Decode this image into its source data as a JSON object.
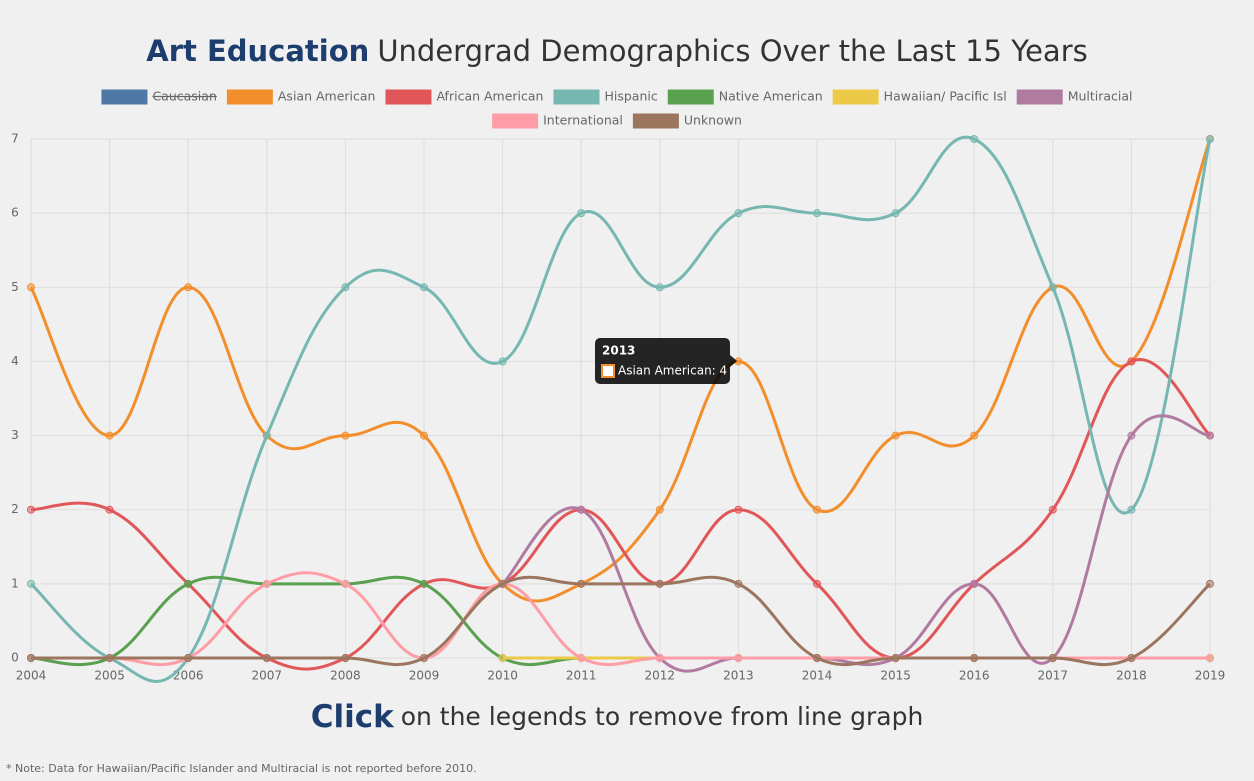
{
  "chart_data": {
    "type": "line",
    "title_emphasis": "Art Education",
    "title": "Undergrad Demographics Over the Last 15 Years",
    "categories": [
      "2004",
      "2005",
      "2006",
      "2007",
      "2008",
      "2009",
      "2010",
      "2011",
      "2012",
      "2013",
      "2014",
      "2015",
      "2016",
      "2017",
      "2018",
      "2019"
    ],
    "ylim": [
      0,
      7
    ],
    "yticks": [
      0,
      1,
      2,
      3,
      4,
      5,
      6,
      7
    ],
    "grid": true,
    "legend": "top",
    "series": [
      {
        "name": "Caucasian",
        "color": "#4e79a7",
        "hidden": true,
        "values": [
          null,
          null,
          null,
          null,
          null,
          null,
          null,
          null,
          null,
          null,
          null,
          null,
          null,
          null,
          null,
          null
        ]
      },
      {
        "name": "Asian American",
        "color": "#f28e2b",
        "values": [
          5,
          3,
          5,
          3,
          3,
          3,
          1,
          1,
          2,
          4,
          2,
          3,
          3,
          5,
          4,
          7
        ]
      },
      {
        "name": "African American",
        "color": "#e15759",
        "values": [
          2,
          2,
          1,
          0,
          0,
          1,
          1,
          2,
          1,
          2,
          1,
          0,
          1,
          2,
          4,
          3
        ]
      },
      {
        "name": "Hispanic",
        "color": "#76b7b2",
        "values": [
          1,
          0,
          0,
          3,
          5,
          5,
          4,
          6,
          5,
          6,
          6,
          6,
          7,
          5,
          2,
          7
        ]
      },
      {
        "name": "Native American",
        "color": "#59a14f",
        "values": [
          0,
          0,
          1,
          1,
          1,
          1,
          0,
          0,
          0,
          0,
          0,
          0,
          0,
          0,
          0,
          0
        ]
      },
      {
        "name": "Hawaiian/ Pacific Isl",
        "color": "#edc948",
        "values": [
          null,
          null,
          null,
          null,
          null,
          null,
          0,
          0,
          0,
          0,
          0,
          0,
          0,
          0,
          0,
          0
        ]
      },
      {
        "name": "Multiracial",
        "color": "#b07aa1",
        "values": [
          null,
          null,
          null,
          null,
          null,
          null,
          1,
          2,
          0,
          0,
          0,
          0,
          1,
          0,
          3,
          3
        ]
      },
      {
        "name": "International",
        "color": "#ff9da7",
        "values": [
          0,
          0,
          0,
          1,
          1,
          0,
          1,
          0,
          0,
          0,
          0,
          0,
          0,
          0,
          0,
          0
        ]
      },
      {
        "name": "Unknown",
        "color": "#9c755f",
        "values": [
          0,
          0,
          0,
          0,
          0,
          0,
          1,
          1,
          1,
          1,
          0,
          0,
          0,
          0,
          0,
          1
        ]
      }
    ],
    "tooltip": {
      "title": "2013",
      "label": "Asian American: 4"
    },
    "footer_emphasis": "Click",
    "footer": "on the legends to remove from line graph",
    "note": "* Note: Data for Hawaiian/Pacific Islander and Multiracial is not reported before 2010."
  }
}
